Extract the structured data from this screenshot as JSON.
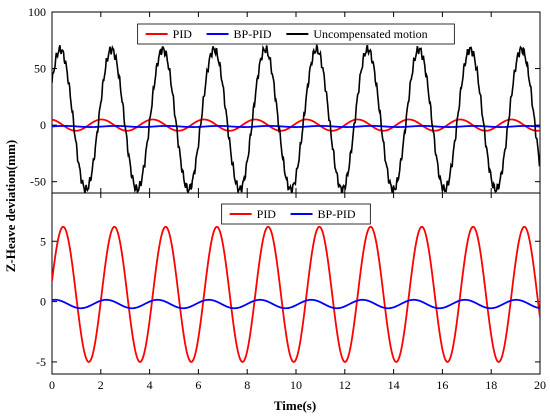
{
  "chart_data": [
    {
      "type": "line",
      "panel": "top",
      "xlim": [
        0,
        20
      ],
      "ylim": [
        -60,
        100
      ],
      "xticks": [
        0,
        2,
        4,
        6,
        8,
        10,
        12,
        14,
        16,
        18,
        20
      ],
      "yticks": [
        -50,
        0,
        50,
        100
      ],
      "show_xtick_labels": false,
      "grid": false,
      "legend": "top, horizontal",
      "series": [
        {
          "name": "PID",
          "color": "#ff0000",
          "amplitude": 5,
          "period": 2.1,
          "phase": 1.8,
          "offset": 0
        },
        {
          "name": "BP-PID",
          "color": "#0000ff",
          "amplitude": 0.5,
          "period": 2.1,
          "phase": 0.0,
          "offset": -1.2
        },
        {
          "name": "Uncompensated motion",
          "color": "#000000",
          "amplitude": 62,
          "period": 2.1,
          "phase": 0.55,
          "offset": 5
        }
      ]
    },
    {
      "type": "line",
      "panel": "bottom",
      "xlim": [
        0,
        20
      ],
      "ylim": [
        -6,
        9
      ],
      "xticks": [
        0,
        2,
        4,
        6,
        8,
        10,
        12,
        14,
        16,
        18,
        20
      ],
      "yticks": [
        -5,
        0,
        5
      ],
      "show_xtick_labels": true,
      "grid": false,
      "legend": "top-center, horizontal",
      "series": [
        {
          "name": "PID",
          "color": "#ff0000",
          "amplitude": 5.6,
          "period": 2.1,
          "phase": 0.2,
          "offset": 0.6
        },
        {
          "name": "BP-PID",
          "color": "#0000ff",
          "amplitude": 0.35,
          "period": 2.1,
          "phase": 1.2,
          "offset": -0.2
        }
      ]
    }
  ],
  "xlabel": "Time(s)",
  "ylabel": "Z-Heave deviation(mm)"
}
